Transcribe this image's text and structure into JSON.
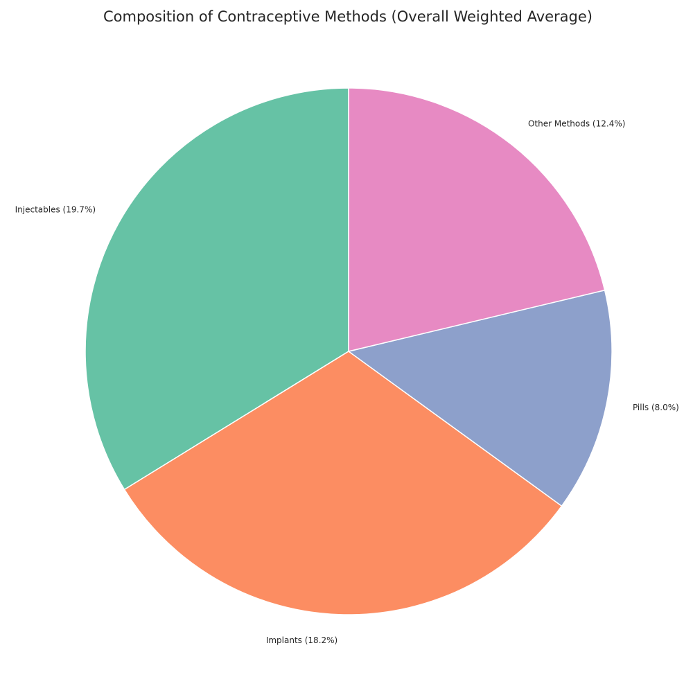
{
  "chart_data": {
    "type": "pie",
    "title": "Composition of Contraceptive Methods (Overall Weighted Average)",
    "start_angle_deg": 90,
    "direction": "counterclockwise",
    "slices": [
      {
        "label": "Injectables (19.7%)",
        "value": 19.7,
        "color": "#66c2a5"
      },
      {
        "label": "Implants (18.2%)",
        "value": 18.2,
        "color": "#fc8d62"
      },
      {
        "label": "Pills (8.0%)",
        "value": 8.0,
        "color": "#8da0cb"
      },
      {
        "label": "Other Methods (12.4%)",
        "value": 12.4,
        "color": "#e78ac3"
      }
    ],
    "edge_color": "#ffffff"
  }
}
